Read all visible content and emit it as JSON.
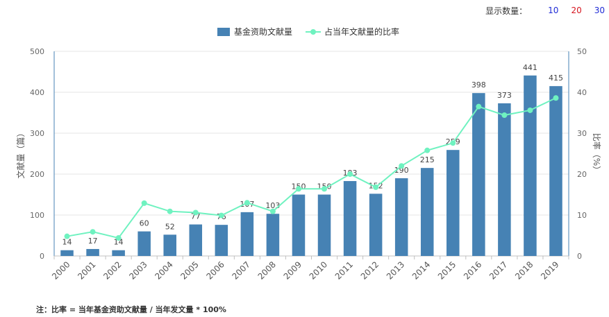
{
  "toolbar": {
    "label": "显示数量：",
    "options": [
      {
        "label": "10",
        "color": "#1f2bd6"
      },
      {
        "label": "20",
        "color": "#d6141e"
      },
      {
        "label": "30",
        "color": "#1f2bd6"
      }
    ]
  },
  "footnote": "注：比率 = 当年基金资助文献量 / 当年发文量 * 100%",
  "chart_data": {
    "type": "bar",
    "categories": [
      "2000",
      "2001",
      "2002",
      "2003",
      "2004",
      "2005",
      "2006",
      "2007",
      "2008",
      "2009",
      "2010",
      "2011",
      "2012",
      "2013",
      "2014",
      "2015",
      "2016",
      "2017",
      "2018",
      "2019"
    ],
    "series": [
      {
        "name": "基金资助文献量",
        "type": "bar",
        "axis": "left",
        "color": "#4682b4",
        "values": [
          14,
          17,
          14,
          60,
          52,
          77,
          76,
          107,
          103,
          150,
          150,
          183,
          152,
          190,
          215,
          259,
          398,
          373,
          441,
          415
        ],
        "labels": [
          "14",
          "17",
          "14",
          "60",
          "52",
          "77",
          "76",
          "107",
          "103",
          "150",
          "150",
          "183",
          "152",
          "190",
          "215",
          "259",
          "398",
          "373",
          "441",
          "415"
        ]
      },
      {
        "name": "占当年文献量的比率",
        "type": "line",
        "axis": "right",
        "color": "#6ff2c0",
        "values": [
          4.8,
          5.9,
          4.4,
          12.9,
          10.9,
          10.6,
          9.9,
          13.0,
          10.9,
          16.4,
          16.4,
          20.0,
          16.8,
          22.0,
          25.8,
          27.6,
          36.5,
          34.4,
          35.6,
          38.6
        ]
      }
    ],
    "ylabel": "文献量（篇）",
    "y2label": "比率（%）",
    "ylim": [
      0,
      500
    ],
    "y2lim": [
      0,
      50
    ],
    "yticks": [
      "0",
      "100",
      "200",
      "300",
      "400",
      "500"
    ],
    "y2ticks": [
      "0",
      "10",
      "20",
      "30",
      "40",
      "50"
    ],
    "grid": true,
    "legend_position": "top-center"
  }
}
